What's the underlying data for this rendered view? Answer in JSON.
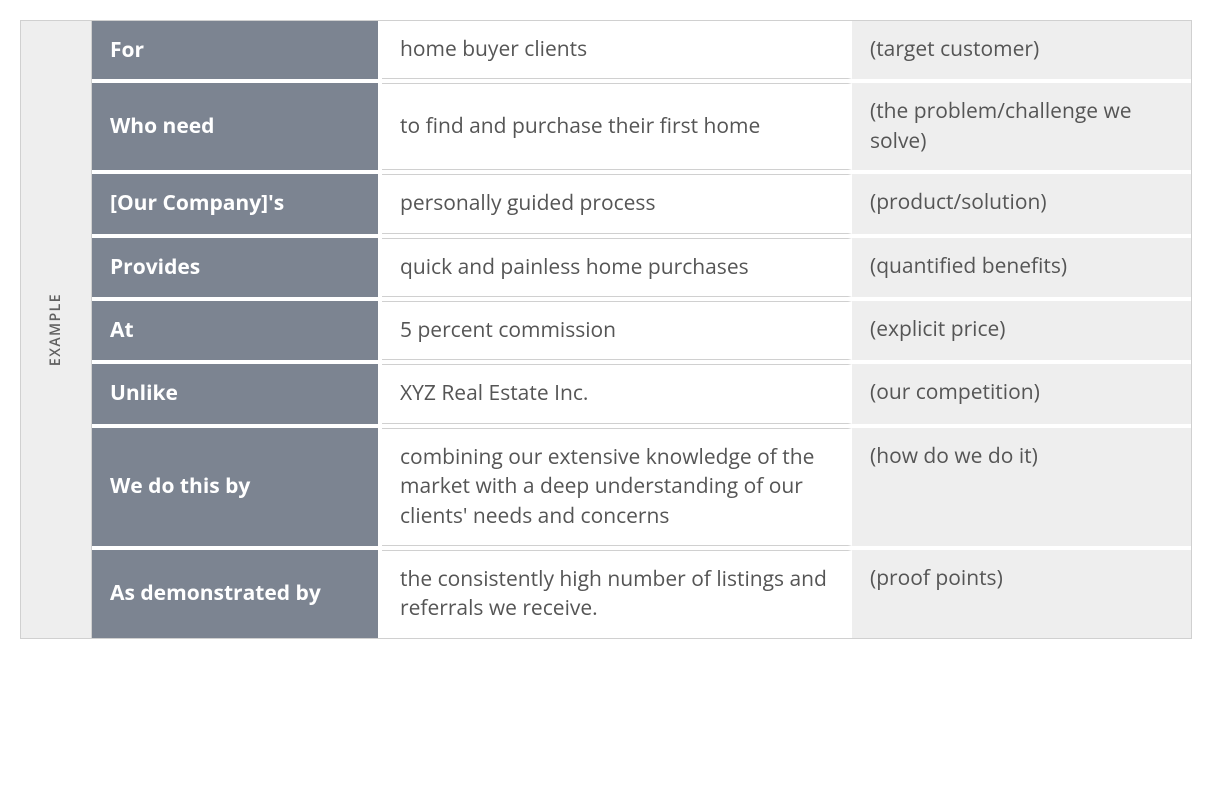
{
  "sideLabel": "EXAMPLE",
  "colors": {
    "headerCellBg": "#7c8491",
    "headerCellText": "#ffffff",
    "bodyCellBg": "#ffffff",
    "bodyCellText": "#555555",
    "noteCellBg": "#eeeeee",
    "noteCellText": "#555555",
    "sideBg": "#eeeeee",
    "sideText": "#606060",
    "border": "#d0d0d0",
    "gap": "#ffffff"
  },
  "layout": {
    "totalWidth": 1172,
    "sideWidth": 70,
    "col1Width": 290,
    "col2Width": 470,
    "rowGap": 4,
    "cellFontSize": 21,
    "sideFontSize": 14,
    "sideLetterSpacing": 1.5
  },
  "rows": [
    {
      "label": "For",
      "value": "home buyer clients",
      "note": "(target customer)"
    },
    {
      "label": "Who need",
      "value": "to find and purchase their first home",
      "note": "(the problem/challenge we solve)"
    },
    {
      "label": "[Our Company]'s",
      "value": "personally guided process",
      "note": "(product/solution)"
    },
    {
      "label": "Provides",
      "value": "quick and painless home purchases",
      "note": "(quantified benefits)"
    },
    {
      "label": "At",
      "value": "5 percent commission",
      "note": "(explicit price)"
    },
    {
      "label": "Unlike",
      "value": "XYZ Real Estate Inc.",
      "note": "(our competition)"
    },
    {
      "label": "We do this by",
      "value": "combining our extensive knowledge of the market with a deep understanding of our clients' needs and concerns",
      "note": "(how do we do it)"
    },
    {
      "label": "As demonstrated by",
      "value": "the consistently high number of listings and referrals we receive.",
      "note": "(proof points)"
    }
  ]
}
